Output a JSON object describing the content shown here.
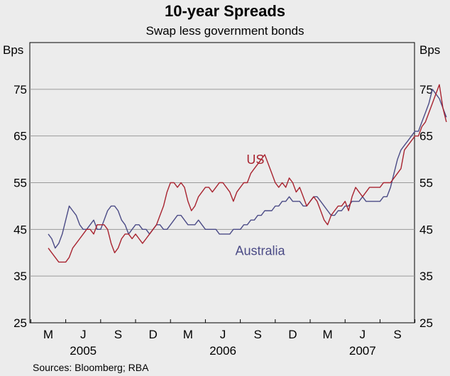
{
  "chart_data": {
    "type": "line",
    "title": "10-year Spreads",
    "subtitle": "Swap less government bonds",
    "ylabel_left": "Bps",
    "ylabel_right": "Bps",
    "ylim": [
      25,
      85
    ],
    "yticks": [
      25,
      35,
      45,
      55,
      65,
      75
    ],
    "month_ticks": [
      "M",
      "J",
      "S",
      "D",
      "M",
      "J",
      "S",
      "D",
      "M",
      "J",
      "S"
    ],
    "years": [
      "2005",
      "2006",
      "2007"
    ],
    "source": "Sources: Bloomberg; RBA",
    "colors": {
      "US": "#a8232f",
      "Australia": "#4b4b86"
    },
    "series": [
      {
        "name": "US",
        "t": [
          0,
          0.3,
          0.6,
          0.9,
          1.2,
          1.5,
          1.8,
          2.1,
          2.4,
          2.7,
          3.0,
          3.3,
          3.6,
          3.9,
          4.2,
          4.5,
          4.8,
          5.1,
          5.4,
          5.7,
          6.0,
          6.3,
          6.6,
          6.9,
          7.2,
          7.5,
          7.8,
          8.1,
          8.4,
          8.7,
          9.0,
          9.3,
          9.6,
          9.9,
          10.2,
          10.5,
          10.8,
          11.1,
          11.4,
          11.7,
          12.0,
          12.3,
          12.6,
          12.9,
          13.2,
          13.5,
          13.8,
          14.1,
          14.4,
          14.7,
          15.0,
          15.3,
          15.6,
          15.9,
          16.2,
          16.5,
          16.8,
          17.1,
          17.4,
          17.7,
          18.0,
          18.3,
          18.6,
          18.9,
          19.2,
          19.5,
          19.8,
          20.1,
          20.4,
          20.7,
          21.0,
          21.3,
          21.6,
          21.9,
          22.2,
          22.5,
          22.8,
          23.1,
          23.4,
          23.7,
          24.0,
          24.3,
          24.6,
          24.9,
          25.2,
          25.5,
          25.8,
          26.1,
          26.4,
          26.7,
          27.0,
          27.3,
          27.6,
          27.9,
          28.2,
          28.5,
          28.8,
          29.1,
          29.4,
          29.7,
          30.0,
          30.3,
          30.6,
          30.9,
          31.2,
          31.5,
          31.8,
          32.1,
          32.4,
          32.7,
          33.0,
          33.3,
          33.6,
          33.9,
          34.2
        ],
        "values": [
          41,
          40,
          39,
          38,
          38,
          38,
          39,
          41,
          42,
          43,
          44,
          45,
          45,
          44,
          46,
          46,
          46,
          45,
          42,
          40,
          41,
          43,
          44,
          44,
          43,
          44,
          43,
          42,
          43,
          44,
          45,
          46,
          48,
          50,
          53,
          55,
          55,
          54,
          55,
          54,
          51,
          49,
          50,
          52,
          53,
          54,
          54,
          53,
          54,
          55,
          55,
          54,
          53,
          51,
          53,
          54,
          55,
          55,
          57,
          58,
          59,
          60,
          61,
          59,
          57,
          55,
          54,
          55,
          54,
          56,
          55,
          53,
          54,
          52,
          50,
          51,
          52,
          51,
          49,
          47,
          46,
          48,
          49,
          50,
          50,
          51,
          49,
          52,
          54,
          53,
          52,
          53,
          54,
          54,
          54,
          54,
          55,
          55,
          55,
          56,
          57,
          58,
          62,
          63,
          64,
          65,
          65,
          67,
          68,
          70,
          72,
          74,
          76,
          71,
          68
        ]
      },
      {
        "name": "Australia",
        "t": [
          0,
          0.3,
          0.6,
          0.9,
          1.2,
          1.5,
          1.8,
          2.1,
          2.4,
          2.7,
          3.0,
          3.3,
          3.6,
          3.9,
          4.2,
          4.5,
          4.8,
          5.1,
          5.4,
          5.7,
          6.0,
          6.3,
          6.6,
          6.9,
          7.2,
          7.5,
          7.8,
          8.1,
          8.4,
          8.7,
          9.0,
          9.3,
          9.6,
          9.9,
          10.2,
          10.5,
          10.8,
          11.1,
          11.4,
          11.7,
          12.0,
          12.3,
          12.6,
          12.9,
          13.2,
          13.5,
          13.8,
          14.1,
          14.4,
          14.7,
          15.0,
          15.3,
          15.6,
          15.9,
          16.2,
          16.5,
          16.8,
          17.1,
          17.4,
          17.7,
          18.0,
          18.3,
          18.6,
          18.9,
          19.2,
          19.5,
          19.8,
          20.1,
          20.4,
          20.7,
          21.0,
          21.3,
          21.6,
          21.9,
          22.2,
          22.5,
          22.8,
          23.1,
          23.4,
          23.7,
          24.0,
          24.3,
          24.6,
          24.9,
          25.2,
          25.5,
          25.8,
          26.1,
          26.4,
          26.7,
          27.0,
          27.3,
          27.6,
          27.9,
          28.2,
          28.5,
          28.8,
          29.1,
          29.4,
          29.7,
          30.0,
          30.3,
          30.6,
          30.9,
          31.2,
          31.5,
          31.8,
          32.1,
          32.4,
          32.7,
          33.0,
          33.3,
          33.6,
          33.9,
          34.2
        ],
        "values": [
          44,
          43,
          41,
          42,
          44,
          47,
          50,
          49,
          48,
          46,
          45,
          45,
          46,
          47,
          45,
          45,
          47,
          49,
          50,
          50,
          49,
          47,
          46,
          44,
          45,
          46,
          46,
          45,
          45,
          44,
          45,
          46,
          46,
          45,
          45,
          46,
          47,
          48,
          48,
          47,
          46,
          46,
          46,
          47,
          46,
          45,
          45,
          45,
          45,
          44,
          44,
          44,
          44,
          45,
          45,
          45,
          46,
          46,
          47,
          47,
          48,
          48,
          49,
          49,
          49,
          50,
          50,
          51,
          51,
          52,
          51,
          51,
          51,
          50,
          50,
          51,
          52,
          52,
          51,
          50,
          49,
          48,
          48,
          49,
          49,
          50,
          50,
          51,
          51,
          51,
          52,
          51,
          51,
          51,
          51,
          51,
          52,
          52,
          54,
          57,
          60,
          62,
          63,
          64,
          65,
          66,
          66,
          68,
          70,
          72,
          75,
          74,
          73,
          71,
          69
        ]
      }
    ],
    "annotations": [
      {
        "text": "US",
        "series": "US",
        "t": 17.8,
        "y": 59
      },
      {
        "text": "Australia",
        "series": "Australia",
        "t": 18.2,
        "y": 39.5
      }
    ]
  }
}
